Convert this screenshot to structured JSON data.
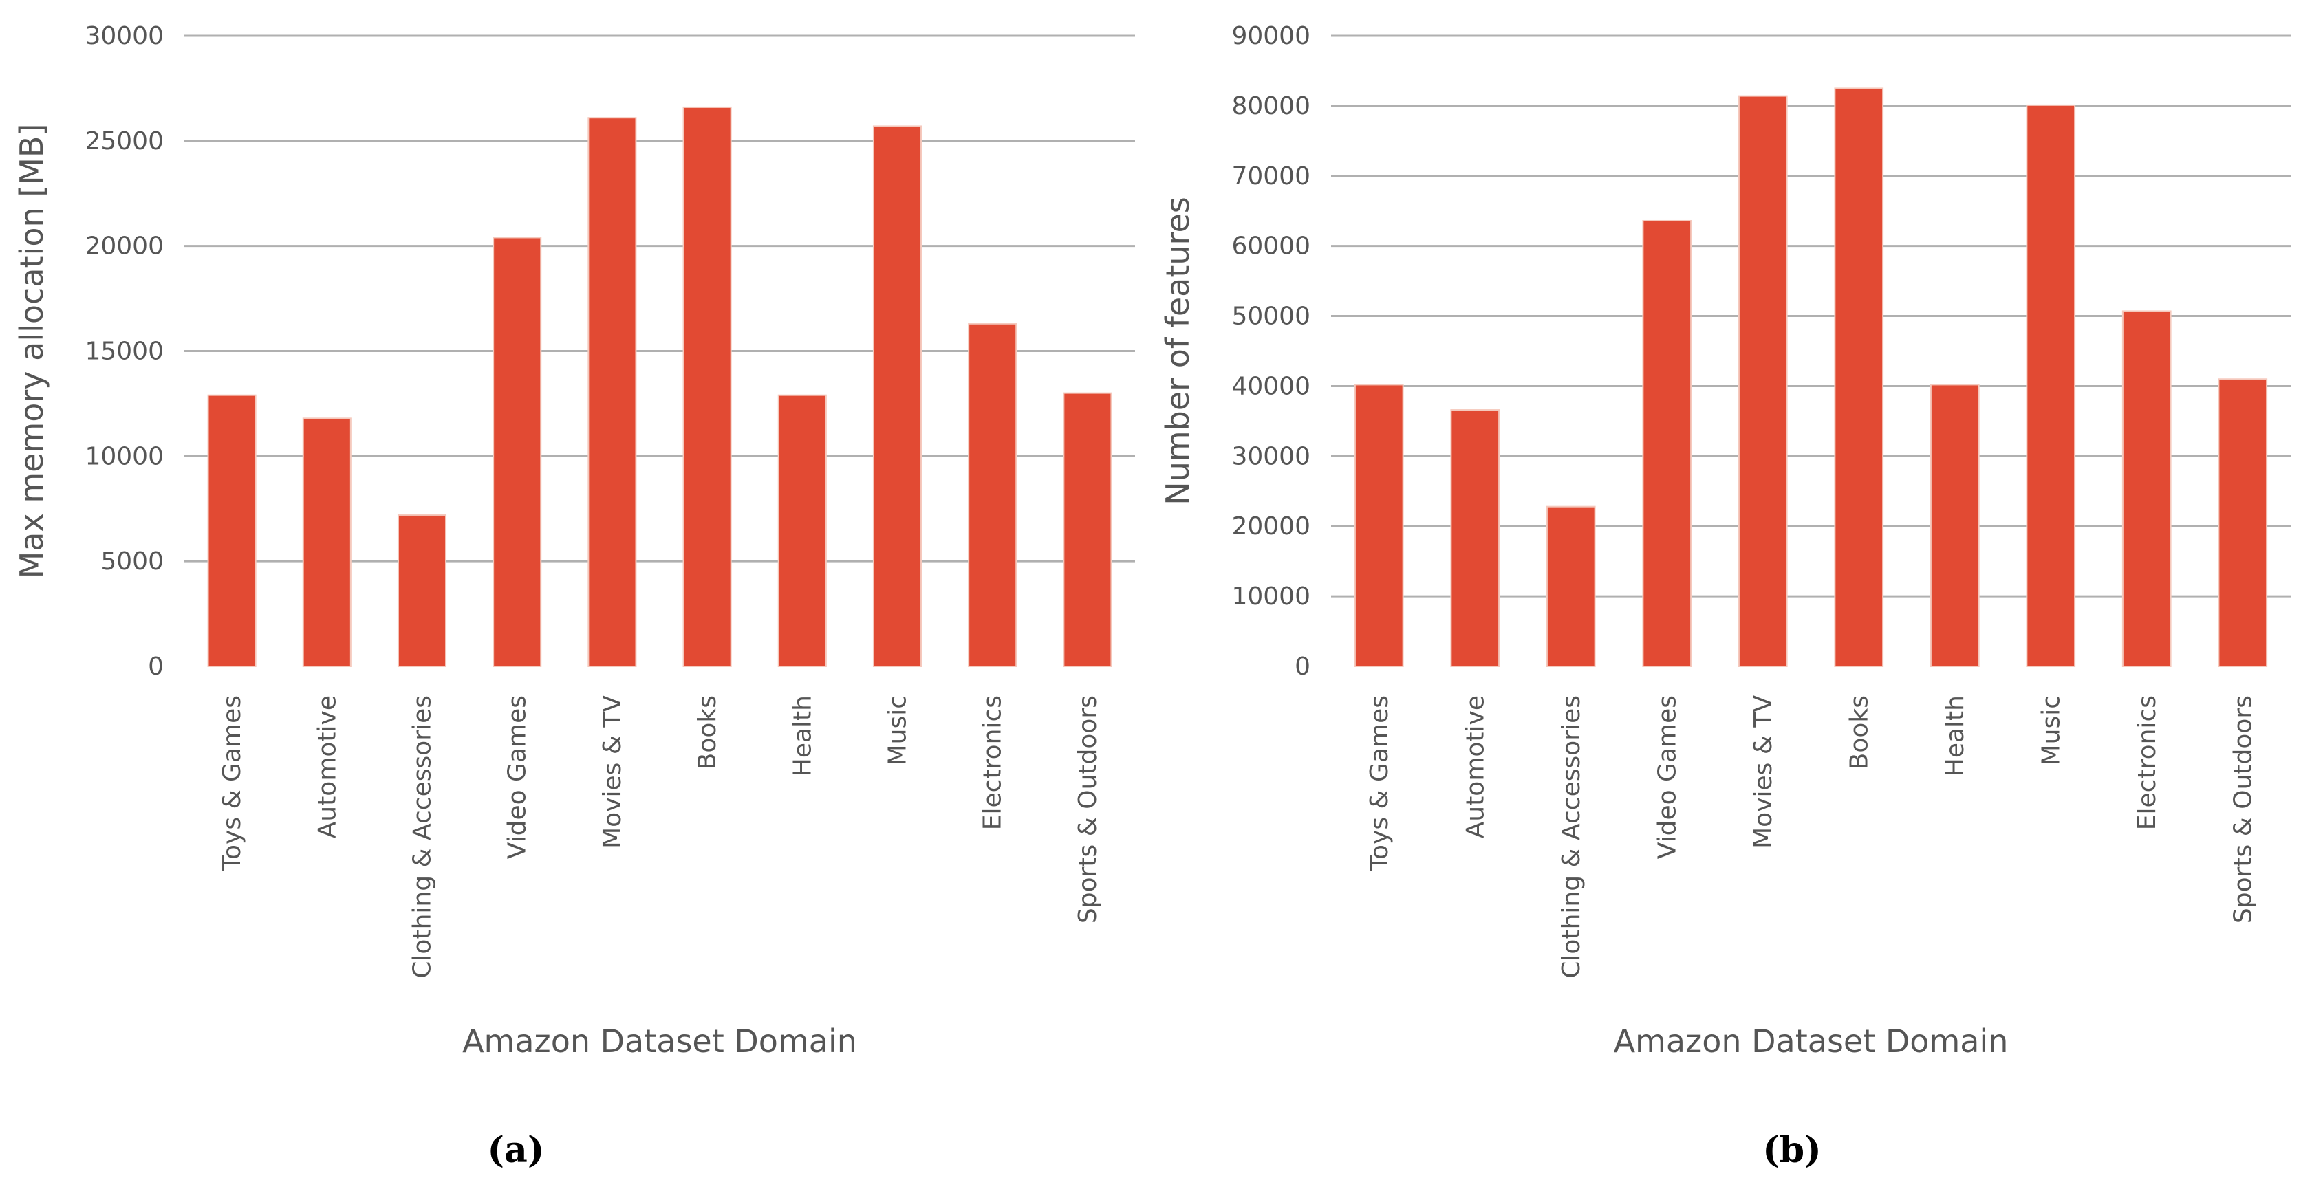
{
  "colors": {
    "bar": "#E24A33",
    "grid": "#b0b0b0",
    "text": "#555555",
    "background": "#ffffff"
  },
  "chart_data": [
    {
      "type": "bar",
      "panel_label": "(a)",
      "title": "",
      "xlabel": "Amazon Dataset Domain",
      "ylabel": "Max memory allocation [MB]",
      "ylim": [
        0,
        30000
      ],
      "yticks": [
        0,
        5000,
        10000,
        15000,
        20000,
        25000,
        30000
      ],
      "grid": true,
      "categories": [
        "Toys & Games",
        "Automotive",
        "Clothing & Accessories",
        "Video Games",
        "Movies & TV",
        "Books",
        "Health",
        "Music",
        "Electronics",
        "Sports & Outdoors"
      ],
      "values": [
        12900,
        11800,
        7200,
        20400,
        26100,
        26600,
        12900,
        25700,
        16300,
        13000
      ]
    },
    {
      "type": "bar",
      "panel_label": "(b)",
      "title": "",
      "xlabel": "Amazon Dataset Domain",
      "ylabel": "Number of features",
      "ylim": [
        0,
        90000
      ],
      "yticks": [
        0,
        10000,
        20000,
        30000,
        40000,
        50000,
        60000,
        70000,
        80000,
        90000
      ],
      "grid": true,
      "categories": [
        "Toys & Games",
        "Automotive",
        "Clothing & Accessories",
        "Video Games",
        "Movies & TV",
        "Books",
        "Health",
        "Music",
        "Electronics",
        "Sports & Outdoors"
      ],
      "values": [
        40200,
        36600,
        22800,
        63600,
        81400,
        82500,
        40200,
        80100,
        50700,
        41000
      ]
    }
  ]
}
